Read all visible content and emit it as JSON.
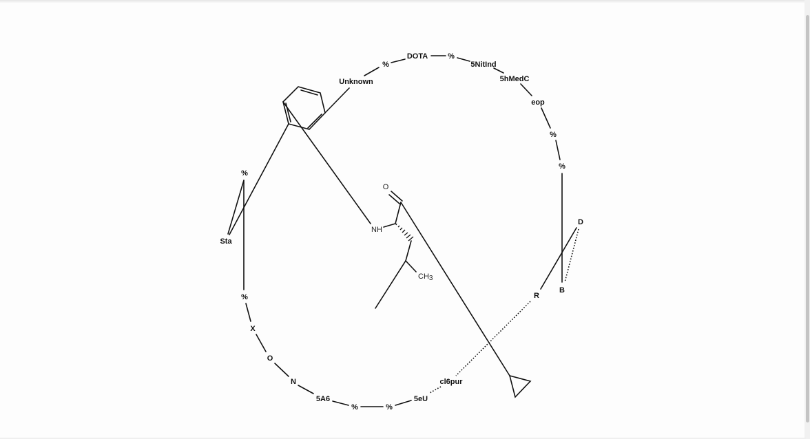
{
  "colors": {
    "bond": "#111111",
    "oxygen": "#e8230a",
    "nitrogen": "#3a4fd0",
    "background": "#fdfdfd"
  },
  "atoms": {
    "oxygen": "O",
    "nitrogen": "NH",
    "methyl": "CH",
    "methyl_sub": "3"
  },
  "ring_labels": [
    "DOTA",
    "%",
    "5NitInd",
    "5hMedC",
    "eop",
    "%",
    "%",
    "D",
    "B",
    "R",
    "cl6pur",
    "5eU",
    "%",
    "%",
    "5A6",
    "N",
    "O",
    "X",
    "%",
    "Sta",
    "%",
    "Unknown",
    "%"
  ]
}
